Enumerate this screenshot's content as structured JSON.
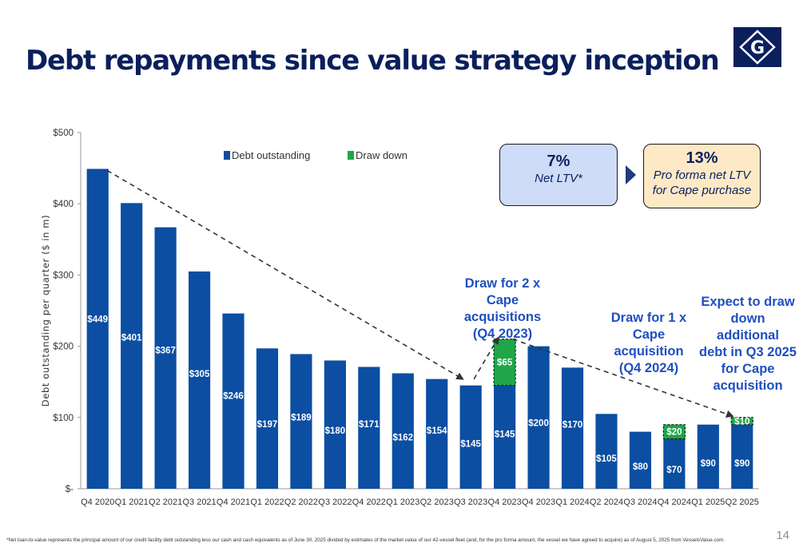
{
  "page": {
    "title": "Debt repayments since value strategy inception",
    "footnote": "*Net loan-to-value represents the principal amount of our credit facility debt outstanding less our cash and cash equivalents as of June 30, 2025 divided by estimates of the market value of our 42-vessel fleet (and, for the pro forma amount, the vessel we have agreed to acquire) as of August 5, 2025 from VesselsValue.com.",
    "page_number": "14",
    "logo": "G"
  },
  "callouts": {
    "ltv_value": "7%",
    "ltv_label": "Net LTV*",
    "proforma_value": "13%",
    "proforma_line1": "Pro forma net LTV",
    "proforma_line2": "for Cape purchase"
  },
  "annotations": {
    "cape2_line1": "Draw for 2 x Cape",
    "cape2_line2": "acquisitions",
    "cape2_line3": "(Q4 2023)",
    "cape1_line1": "Draw for 1 x",
    "cape1_line2": "Cape acquisition",
    "cape1_line3": "(Q4 2024)",
    "expect_line1": "Expect to draw",
    "expect_line2": "down additional",
    "expect_line3": "debt in Q3 2025",
    "expect_line4": "for Cape",
    "expect_line5": "acquisition"
  },
  "colors": {
    "debt": "#0b4ea2",
    "drawdown": "#1fa64a",
    "title": "#0b1f5c",
    "annotation": "#1f4fbf"
  },
  "chart_data": {
    "type": "bar",
    "stacked": true,
    "ylabel": "Debt outstanding per quarter ($ in m)",
    "ylim": [
      0,
      500
    ],
    "yticks": [
      0,
      100,
      200,
      300,
      400,
      500
    ],
    "ytick_labels": [
      "$-",
      "$100",
      "$200",
      "$300",
      "$400",
      "$500"
    ],
    "grid": false,
    "legend": "top",
    "categories": [
      "Q4 2020",
      "Q1 2021",
      "Q2 2021",
      "Q3 2021",
      "Q4 2021",
      "Q1 2022",
      "Q2 2022",
      "Q3 2022",
      "Q4 2022",
      "Q1 2023",
      "Q2 2023",
      "Q3 2023",
      "Q4 2023",
      "Q4 2023",
      "Q1 2024",
      "Q2 2024",
      "Q3 2024",
      "Q4 2024",
      "Q1 2025",
      "Q2 2025"
    ],
    "series": [
      {
        "name": "Debt outstanding",
        "values": [
          449,
          401,
          367,
          305,
          246,
          197,
          189,
          180,
          171,
          162,
          154,
          145,
          145,
          200,
          170,
          105,
          80,
          70,
          90,
          90
        ],
        "labels": [
          "$449",
          "$401",
          "$367",
          "$305",
          "$246",
          "$197",
          "$189",
          "$180",
          "$171",
          "$162",
          "$154",
          "$145",
          "$145",
          "$200",
          "$170",
          "$105",
          "$80",
          "$70",
          "$90",
          "$90"
        ]
      },
      {
        "name": "Draw down",
        "values": [
          0,
          0,
          0,
          0,
          0,
          0,
          0,
          0,
          0,
          0,
          0,
          0,
          65,
          0,
          0,
          0,
          0,
          20,
          0,
          10
        ],
        "labels": [
          "",
          "",
          "",
          "",
          "",
          "",
          "",
          "",
          "",
          "",
          "",
          "",
          "$65",
          "",
          "",
          "",
          "",
          "$20",
          "",
          "$10"
        ]
      }
    ]
  }
}
